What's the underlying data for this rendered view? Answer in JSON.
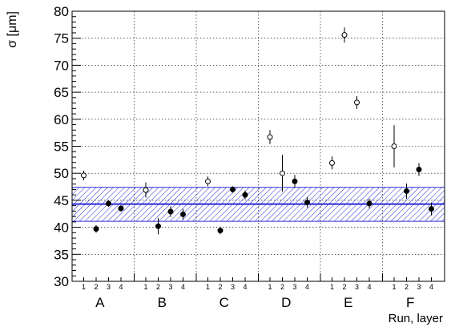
{
  "chart_data": {
    "type": "scatter",
    "ylabel": "σ [μm]",
    "xlabel": "Run, layer",
    "ylim": [
      30,
      80
    ],
    "yticks": [
      30,
      35,
      40,
      45,
      50,
      55,
      60,
      65,
      70,
      75,
      80
    ],
    "grid": true,
    "groups": [
      {
        "name": "A",
        "layers": [
          "1",
          "2",
          "3",
          "4"
        ]
      },
      {
        "name": "B",
        "layers": [
          "1",
          "2",
          "3",
          "4"
        ]
      },
      {
        "name": "C",
        "layers": [
          "1",
          "2",
          "3",
          "4"
        ]
      },
      {
        "name": "D",
        "layers": [
          "1",
          "2",
          "3",
          "4"
        ]
      },
      {
        "name": "E",
        "layers": [
          "1",
          "2",
          "3",
          "4"
        ]
      },
      {
        "name": "F",
        "layers": [
          "1",
          "2",
          "3",
          "4"
        ]
      }
    ],
    "points": [
      {
        "group": "A",
        "layer": 1,
        "y": 49.6,
        "err": 0.9,
        "marker": "open"
      },
      {
        "group": "A",
        "layer": 2,
        "y": 39.7,
        "err": 0.7,
        "marker": "filled"
      },
      {
        "group": "A",
        "layer": 3,
        "y": 44.4,
        "err": 0.6,
        "marker": "filled"
      },
      {
        "group": "A",
        "layer": 4,
        "y": 43.5,
        "err": 0.6,
        "marker": "filled"
      },
      {
        "group": "B",
        "layer": 1,
        "y": 46.9,
        "err": 1.4,
        "marker": "open"
      },
      {
        "group": "B",
        "layer": 2,
        "y": 40.2,
        "err": 1.5,
        "marker": "filled"
      },
      {
        "group": "B",
        "layer": 3,
        "y": 42.9,
        "err": 1.0,
        "marker": "filled"
      },
      {
        "group": "B",
        "layer": 4,
        "y": 42.4,
        "err": 1.0,
        "marker": "filled"
      },
      {
        "group": "C",
        "layer": 1,
        "y": 48.5,
        "err": 0.9,
        "marker": "open"
      },
      {
        "group": "C",
        "layer": 2,
        "y": 39.4,
        "err": 0.7,
        "marker": "filled"
      },
      {
        "group": "C",
        "layer": 3,
        "y": 47.0,
        "err": 0.6,
        "marker": "filled"
      },
      {
        "group": "C",
        "layer": 4,
        "y": 46.0,
        "err": 0.8,
        "marker": "filled"
      },
      {
        "group": "D",
        "layer": 1,
        "y": 56.7,
        "err": 1.3,
        "marker": "open"
      },
      {
        "group": "D",
        "layer": 2,
        "y": 50.0,
        "err": 3.4,
        "marker": "open"
      },
      {
        "group": "D",
        "layer": 3,
        "y": 48.5,
        "err": 1.2,
        "marker": "filled"
      },
      {
        "group": "D",
        "layer": 4,
        "y": 44.6,
        "err": 1.0,
        "marker": "filled"
      },
      {
        "group": "E",
        "layer": 1,
        "y": 51.9,
        "err": 1.2,
        "marker": "open"
      },
      {
        "group": "E",
        "layer": 2,
        "y": 75.6,
        "err": 1.4,
        "marker": "open"
      },
      {
        "group": "E",
        "layer": 3,
        "y": 63.1,
        "err": 1.2,
        "marker": "open"
      },
      {
        "group": "E",
        "layer": 4,
        "y": 44.4,
        "err": 0.9,
        "marker": "filled"
      },
      {
        "group": "F",
        "layer": 1,
        "y": 55.0,
        "err": 3.9,
        "marker": "open"
      },
      {
        "group": "F",
        "layer": 2,
        "y": 46.7,
        "err": 1.4,
        "marker": "filled"
      },
      {
        "group": "F",
        "layer": 3,
        "y": 50.7,
        "err": 1.2,
        "marker": "filled"
      },
      {
        "group": "F",
        "layer": 4,
        "y": 43.4,
        "err": 1.2,
        "marker": "filled"
      }
    ],
    "mean_band": {
      "value": 44.3,
      "low": 41.1,
      "high": 47.4,
      "color": "#2a2ad6"
    }
  }
}
